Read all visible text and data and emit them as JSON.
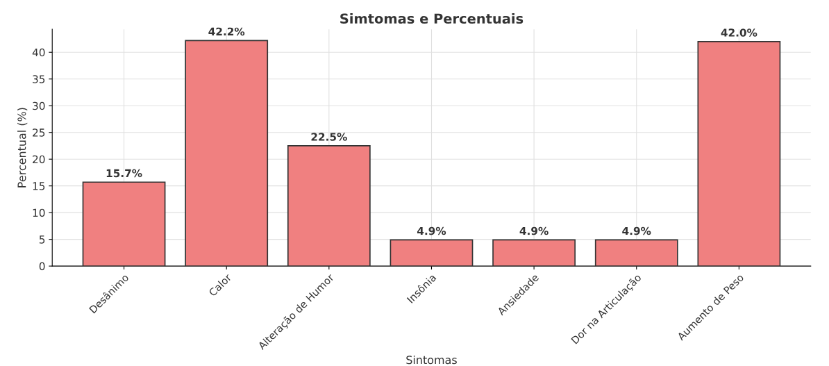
{
  "chart_data": {
    "type": "bar",
    "title": "Simtomas e Percentuais",
    "xlabel": "Sintomas",
    "ylabel": "Percentual (%)",
    "categories": [
      "Desânimo",
      "Calor",
      "Alteração de Humor",
      "Insônia",
      "Ansiedade",
      "Dor na Articulação",
      "Aumento de Peso"
    ],
    "values": [
      15.7,
      42.2,
      22.5,
      4.9,
      4.9,
      4.9,
      42.0
    ],
    "value_labels": [
      "15.7%",
      "42.2%",
      "22.5%",
      "4.9%",
      "4.9%",
      "4.9%",
      "42.0%"
    ],
    "color": "#f08080",
    "ylim": [
      0,
      44.3
    ],
    "yticks": [
      0,
      5,
      10,
      15,
      20,
      25,
      30,
      35,
      40
    ],
    "grid": true
  }
}
